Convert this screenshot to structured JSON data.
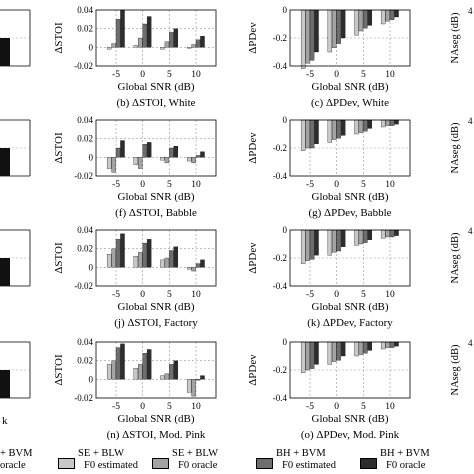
{
  "series_labels": [
    "SE + BLW F0 estimated",
    "SE + BLW F0 oracle",
    "BH + BVM F0 estimated",
    "BH + BVM F0 oracle"
  ],
  "colors": {
    "s1": "#c8c8c8",
    "s2": "#a3a3a3",
    "s3": "#6e6e6e",
    "s4": "#2d2d2d",
    "gridline": "#999999",
    "axis": "#000000"
  },
  "legend": [
    {
      "line1": "+ BVM",
      "line2": "oracle",
      "color": "#2d2d2d"
    },
    {
      "line1": "SE + BLW",
      "line2": "F0 estimated",
      "color": "#c8c8c8"
    },
    {
      "line1": "SE + BLW",
      "line2": "F0 oracle",
      "color": "#a3a3a3"
    },
    {
      "line1": "BH + BVM",
      "line2": "F0 estimated",
      "color": "#6e6e6e"
    },
    {
      "line1": "BH + BVM",
      "line2": "F0 oracle",
      "color": "#2d2d2d"
    }
  ],
  "left_partial_labels": [
    "",
    "",
    "",
    "k"
  ],
  "right_partial_ylabel": "NAseg (dB)",
  "right_partial_ticks": [
    "4",
    "4",
    "4",
    "4"
  ],
  "chart_data": [
    {
      "type": "bar",
      "title": "(b) ΔSTOI, White",
      "xlabel": "Global SNR (dB)",
      "ylabel": "ΔSTOI",
      "categories": [
        "-5",
        "0",
        "5",
        "10"
      ],
      "ylim": [
        -0.02,
        0.04
      ],
      "yticks": [
        "0.04",
        "0.02",
        "0",
        "-0.02"
      ],
      "series": [
        {
          "values": [
            -0.002,
            0.002,
            -0.002,
            -0.001
          ]
        },
        {
          "values": [
            0.004,
            0.01,
            0.006,
            0.003
          ]
        },
        {
          "values": [
            0.03,
            0.025,
            0.016,
            0.008
          ]
        },
        {
          "values": [
            0.04,
            0.033,
            0.02,
            0.012
          ]
        }
      ]
    },
    {
      "type": "bar",
      "title": "(c) ΔPDev, White",
      "xlabel": "Global SNR (dB)",
      "ylabel": "ΔPDev",
      "categories": [
        "-5",
        "0",
        "5",
        "10"
      ],
      "ylim": [
        -0.4,
        0.0
      ],
      "yticks": [
        "0",
        "-0.2",
        "-0.4"
      ],
      "series": [
        {
          "values": [
            -0.42,
            -0.3,
            -0.18,
            -0.1
          ]
        },
        {
          "values": [
            -0.38,
            -0.27,
            -0.15,
            -0.08
          ]
        },
        {
          "values": [
            -0.36,
            -0.24,
            -0.13,
            -0.07
          ]
        },
        {
          "values": [
            -0.3,
            -0.2,
            -0.11,
            -0.05
          ]
        }
      ]
    },
    {
      "type": "bar",
      "title": "(f) ΔSTOI, Babble",
      "xlabel": "Global SNR (dB)",
      "ylabel": "ΔSTOI",
      "categories": [
        "-5",
        "0",
        "5",
        "10"
      ],
      "ylim": [
        -0.02,
        0.04
      ],
      "yticks": [
        "0.04",
        "0.02",
        "0",
        "-0.02"
      ],
      "series": [
        {
          "values": [
            -0.012,
            -0.008,
            -0.003,
            -0.004
          ]
        },
        {
          "values": [
            -0.016,
            -0.012,
            -0.006,
            -0.006
          ]
        },
        {
          "values": [
            0.01,
            0.014,
            0.01,
            0.002
          ]
        },
        {
          "values": [
            0.018,
            0.016,
            0.012,
            0.006
          ]
        }
      ]
    },
    {
      "type": "bar",
      "title": "(g) ΔPDev, Babble",
      "xlabel": "Global SNR (dB)",
      "ylabel": "ΔPDev",
      "categories": [
        "-5",
        "0",
        "5",
        "10"
      ],
      "ylim": [
        -0.4,
        0.0
      ],
      "yticks": [
        "0",
        "-0.2",
        "-0.4"
      ],
      "series": [
        {
          "values": [
            -0.22,
            -0.16,
            -0.1,
            -0.05
          ]
        },
        {
          "values": [
            -0.2,
            -0.14,
            -0.09,
            -0.04
          ]
        },
        {
          "values": [
            -0.2,
            -0.13,
            -0.08,
            -0.04
          ]
        },
        {
          "values": [
            -0.17,
            -0.11,
            -0.06,
            -0.03
          ]
        }
      ]
    },
    {
      "type": "bar",
      "title": "(j) ΔSTOI, Factory",
      "xlabel": "Global SNR (dB)",
      "ylabel": "ΔSTOI",
      "categories": [
        "-5",
        "0",
        "5",
        "10"
      ],
      "ylim": [
        -0.02,
        0.04
      ],
      "yticks": [
        "0.04",
        "0.02",
        "0",
        "-0.02"
      ],
      "series": [
        {
          "values": [
            0.014,
            0.012,
            0.008,
            -0.002
          ]
        },
        {
          "values": [
            0.02,
            0.016,
            0.01,
            -0.004
          ]
        },
        {
          "values": [
            0.03,
            0.026,
            0.018,
            0.004
          ]
        },
        {
          "values": [
            0.036,
            0.03,
            0.022,
            0.008
          ]
        }
      ]
    },
    {
      "type": "bar",
      "title": "(k) ΔPDev, Factory",
      "xlabel": "Global SNR (dB)",
      "ylabel": "ΔPDev",
      "categories": [
        "-5",
        "0",
        "5",
        "10"
      ],
      "ylim": [
        -0.4,
        0.0
      ],
      "yticks": [
        "0",
        "-0.2",
        "-0.4"
      ],
      "series": [
        {
          "values": [
            -0.24,
            -0.18,
            -0.11,
            -0.06
          ]
        },
        {
          "values": [
            -0.22,
            -0.16,
            -0.1,
            -0.05
          ]
        },
        {
          "values": [
            -0.21,
            -0.15,
            -0.09,
            -0.05
          ]
        },
        {
          "values": [
            -0.18,
            -0.12,
            -0.07,
            -0.04
          ]
        }
      ]
    },
    {
      "type": "bar",
      "title": "(n) ΔSTOI, Mod. Pink",
      "xlabel": "Global SNR (dB)",
      "ylabel": "ΔSTOI",
      "categories": [
        "-5",
        "0",
        "5",
        "10"
      ],
      "ylim": [
        -0.02,
        0.04
      ],
      "yticks": [
        "0.04",
        "0.02",
        "0",
        "-0.02"
      ],
      "series": [
        {
          "values": [
            0.016,
            0.012,
            0.004,
            -0.014
          ]
        },
        {
          "values": [
            0.02,
            0.016,
            0.006,
            -0.018
          ]
        },
        {
          "values": [
            0.034,
            0.028,
            0.016,
            0.0
          ]
        },
        {
          "values": [
            0.038,
            0.032,
            0.02,
            0.004
          ]
        }
      ]
    },
    {
      "type": "bar",
      "title": "(o) ΔPDev, Mod. Pink",
      "xlabel": "Global SNR (dB)",
      "ylabel": "ΔPDev",
      "categories": [
        "-5",
        "0",
        "5",
        "10"
      ],
      "ylim": [
        -0.4,
        0.0
      ],
      "yticks": [
        "0",
        "-0.2",
        "-0.4"
      ],
      "series": [
        {
          "values": [
            -0.22,
            -0.16,
            -0.1,
            -0.05
          ]
        },
        {
          "values": [
            -0.2,
            -0.14,
            -0.09,
            -0.04
          ]
        },
        {
          "values": [
            -0.19,
            -0.13,
            -0.08,
            -0.04
          ]
        },
        {
          "values": [
            -0.16,
            -0.1,
            -0.06,
            -0.03
          ]
        }
      ]
    }
  ]
}
